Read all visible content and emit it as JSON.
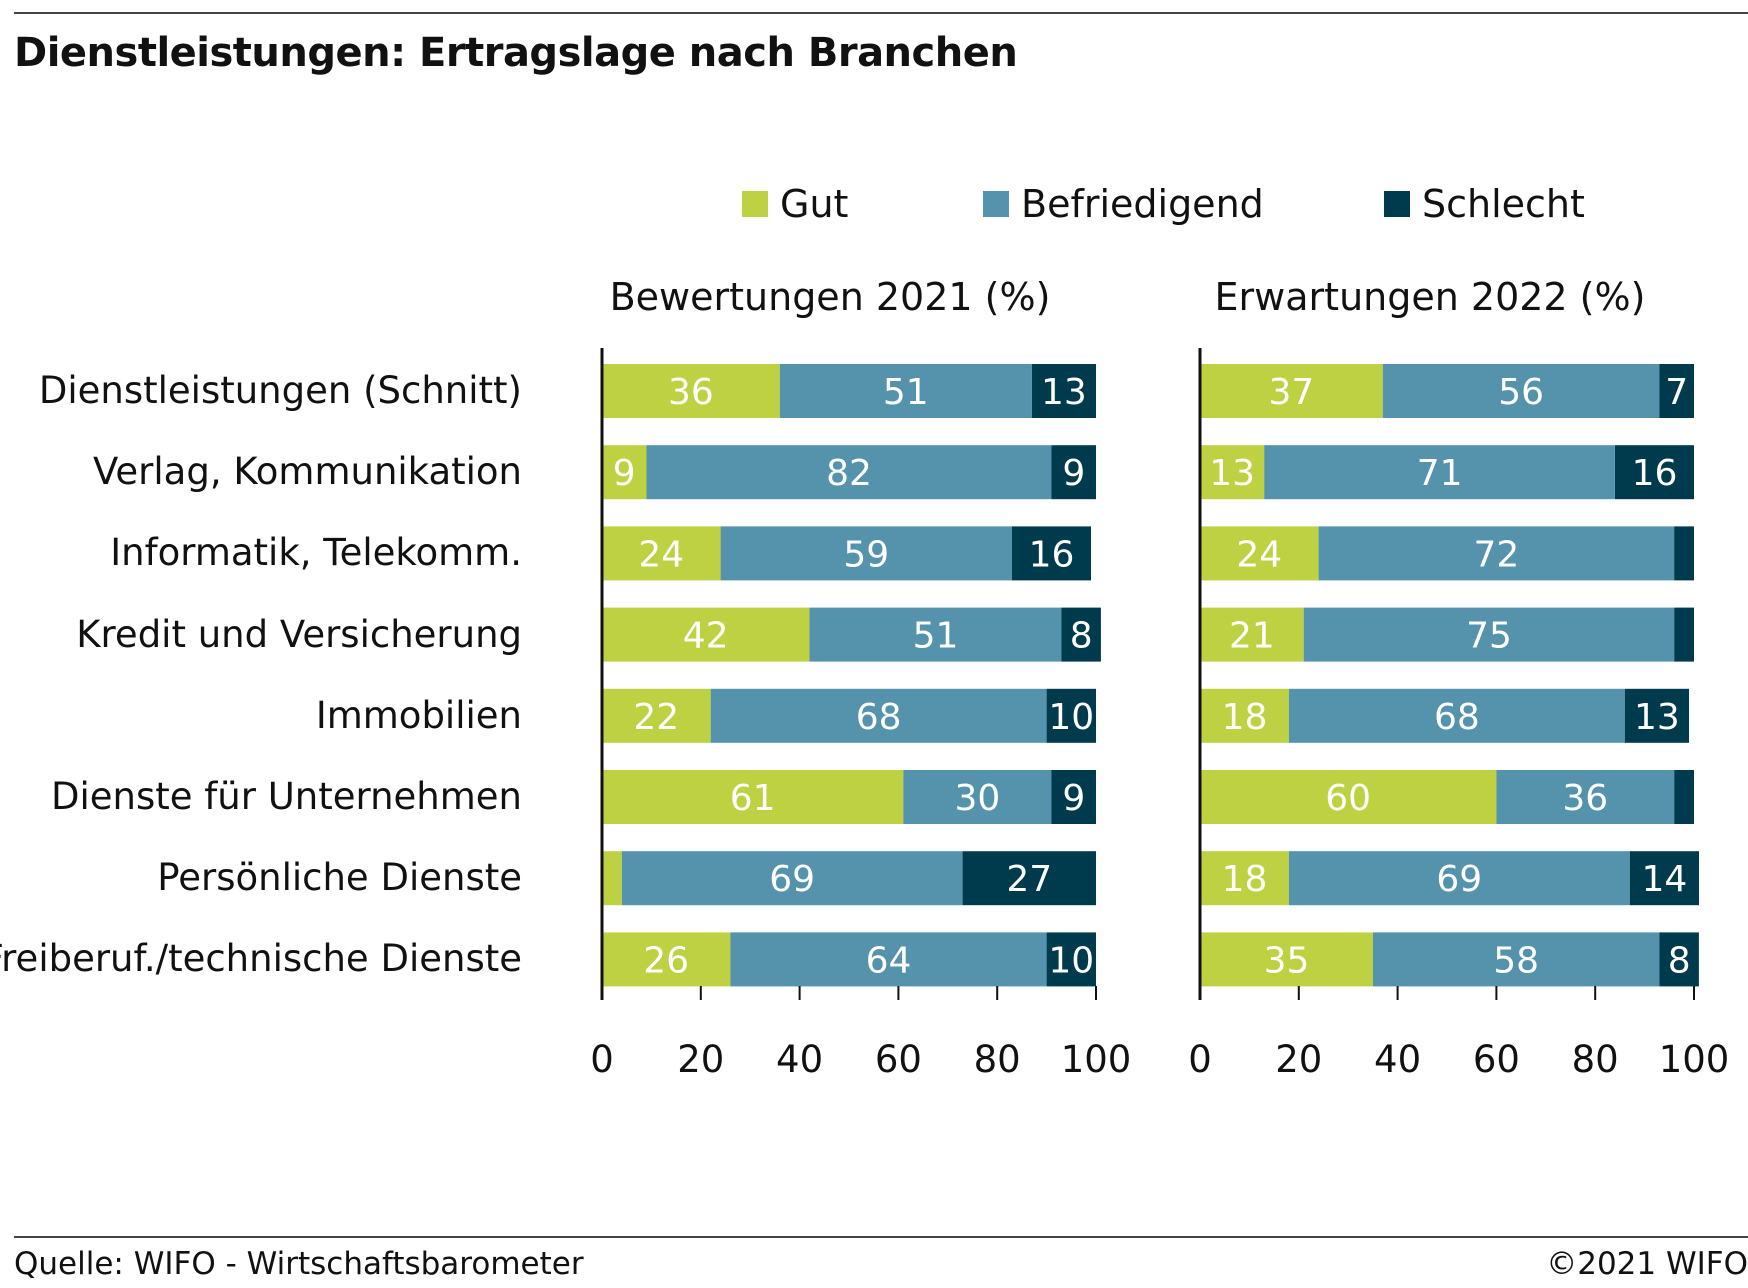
{
  "header": {
    "title": "Dienstleistungen: Ertragslage nach Branchen"
  },
  "footer": {
    "source": "Quelle: WIFO - Wirtschaftsbarometer",
    "copyright": "©2021 WIFO"
  },
  "colors": {
    "gut": "#bdd142",
    "befriedigend": "#5493ab",
    "schlecht": "#003a4d",
    "axis": "#111111",
    "label_on_bar": "#ffffff"
  },
  "chart_data": {
    "type": "bar",
    "orientation": "horizontal",
    "stacked": true,
    "title": "Dienstleistungen: Ertragslage nach Branchen",
    "legend": [
      "Gut",
      "Befriedigend",
      "Schlecht"
    ],
    "legend_position": "top",
    "categories": [
      "Dienstleistungen (Schnitt)",
      "Verlag, Kommunikation",
      "Informatik, Telekomm.",
      "Kredit und Versicherung",
      "Immobilien",
      "Dienste für Unternehmen",
      "Persönliche Dienste",
      "Freiberuf./technische Dienste"
    ],
    "xlim": [
      0,
      100
    ],
    "xticks": [
      "0",
      "20",
      "40",
      "60",
      "80",
      "100"
    ],
    "grid": false,
    "panels": [
      {
        "title": "Bewertungen 2021 (%)",
        "series": [
          {
            "name": "Gut",
            "values": [
              36,
              9,
              24,
              42,
              22,
              61,
              4,
              26
            ],
            "labels": [
              "36",
              "9",
              "24",
              "42",
              "22",
              "61",
              "",
              "26"
            ]
          },
          {
            "name": "Befriedigend",
            "values": [
              51,
              82,
              59,
              51,
              68,
              30,
              69,
              64
            ],
            "labels": [
              "51",
              "82",
              "59",
              "51",
              "68",
              "30",
              "69",
              "64"
            ]
          },
          {
            "name": "Schlecht",
            "values": [
              13,
              9,
              16,
              8,
              10,
              9,
              27,
              10
            ],
            "labels": [
              "13",
              "9",
              "16",
              "8",
              "10",
              "9",
              "27",
              "10"
            ]
          }
        ]
      },
      {
        "title": "Erwartungen 2022 (%)",
        "series": [
          {
            "name": "Gut",
            "values": [
              37,
              13,
              24,
              21,
              18,
              60,
              18,
              35
            ],
            "labels": [
              "37",
              "13",
              "24",
              "21",
              "18",
              "60",
              "18",
              "35"
            ]
          },
          {
            "name": "Befriedigend",
            "values": [
              56,
              71,
              72,
              75,
              68,
              36,
              69,
              58
            ],
            "labels": [
              "56",
              "71",
              "72",
              "75",
              "68",
              "36",
              "69",
              "58"
            ]
          },
          {
            "name": "Schlecht",
            "values": [
              7,
              16,
              4,
              4,
              13,
              4,
              14,
              8
            ],
            "labels": [
              "7",
              "16",
              "",
              "",
              "13",
              "",
              "14",
              "8"
            ]
          }
        ]
      }
    ]
  }
}
